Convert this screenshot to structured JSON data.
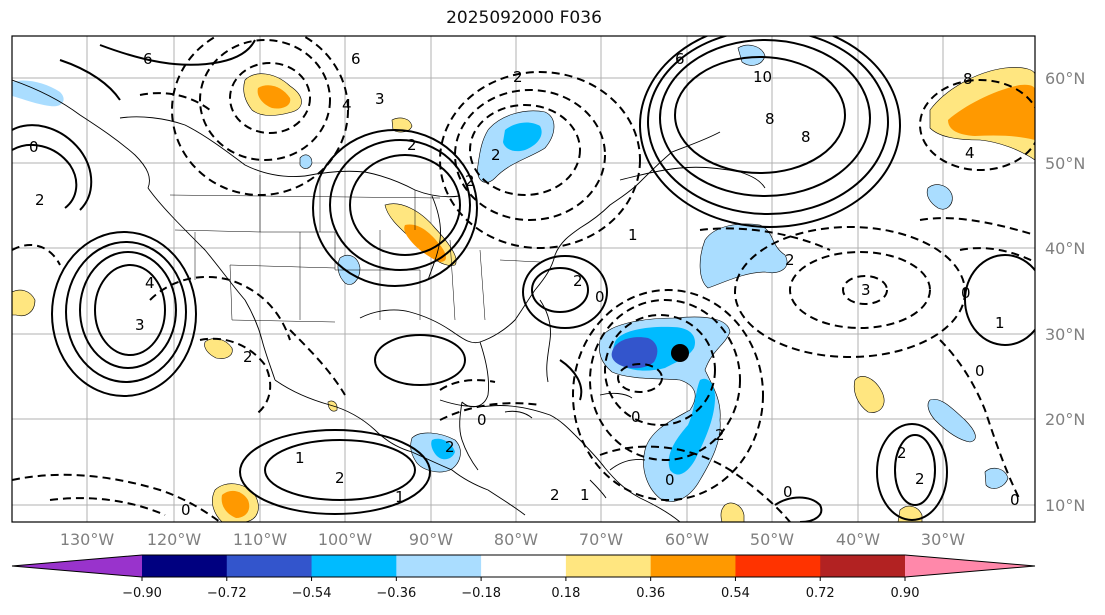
{
  "title": "2025092000 F036",
  "map": {
    "lat_labels": [
      "60°N",
      "50°N",
      "40°N",
      "30°N",
      "20°N",
      "10°N"
    ],
    "lon_labels": [
      "130°W",
      "120°W",
      "110°W",
      "100°W",
      "90°W",
      "80°W",
      "70°W",
      "60°W",
      "50°W",
      "40°W",
      "30°W"
    ],
    "contour_labels": [
      "6",
      "6",
      "2",
      "4",
      "3",
      "2",
      "2",
      "2",
      "6",
      "10",
      "8",
      "8",
      "8",
      "4",
      "0",
      "2",
      "4",
      "3",
      "2",
      "2",
      "1",
      "2",
      "0",
      "3",
      "1",
      "0",
      "0",
      "2",
      "1",
      "2",
      "0",
      "0",
      "1",
      "2",
      "0",
      "2",
      "2",
      "2",
      "0",
      "0",
      "1",
      "0"
    ],
    "marker": "storm-center-dot"
  },
  "colorbar": {
    "ticks": [
      "−0.90",
      "−0.72",
      "−0.54",
      "−0.36",
      "−0.18",
      "0.18",
      "0.36",
      "0.54",
      "0.72",
      "0.90"
    ],
    "colors": [
      "#9933cc",
      "#000080",
      "#3355cc",
      "#00bbff",
      "#aaddff",
      "#ffffff",
      "#ffe680",
      "#ff9900",
      "#ff3300",
      "#b22222",
      "#ff88aa"
    ]
  }
}
